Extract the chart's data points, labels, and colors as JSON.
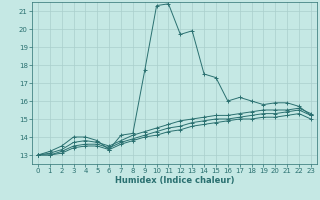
{
  "xlabel": "Humidex (Indice chaleur)",
  "ylabel": "",
  "bg_color": "#c5e8e4",
  "grid_color": "#aacfcc",
  "line_color": "#2a7070",
  "xlim": [
    -0.5,
    23.5
  ],
  "ylim": [
    12.5,
    21.5
  ],
  "x_ticks": [
    0,
    1,
    2,
    3,
    4,
    5,
    6,
    7,
    8,
    9,
    10,
    11,
    12,
    13,
    14,
    15,
    16,
    17,
    18,
    19,
    20,
    21,
    22,
    23
  ],
  "y_ticks": [
    13,
    14,
    15,
    16,
    17,
    18,
    19,
    20,
    21
  ],
  "series": [
    {
      "x": [
        0,
        1,
        2,
        3,
        4,
        5,
        6,
        7,
        8,
        9,
        10,
        11,
        12,
        13,
        14,
        15,
        16,
        17,
        18,
        19,
        20,
        21,
        22,
        23
      ],
      "y": [
        13.0,
        13.2,
        13.5,
        14.0,
        14.0,
        13.8,
        13.3,
        14.1,
        14.2,
        17.7,
        21.3,
        21.4,
        19.7,
        19.9,
        17.5,
        17.3,
        16.0,
        16.2,
        16.0,
        15.8,
        15.9,
        15.9,
        15.7,
        15.2
      ]
    },
    {
      "x": [
        0,
        1,
        2,
        3,
        4,
        5,
        6,
        7,
        8,
        9,
        10,
        11,
        12,
        13,
        14,
        15,
        16,
        17,
        18,
        19,
        20,
        21,
        22,
        23
      ],
      "y": [
        13.0,
        13.1,
        13.3,
        13.7,
        13.8,
        13.7,
        13.5,
        13.8,
        14.1,
        14.3,
        14.5,
        14.7,
        14.9,
        15.0,
        15.1,
        15.2,
        15.2,
        15.3,
        15.4,
        15.5,
        15.5,
        15.5,
        15.6,
        15.3
      ]
    },
    {
      "x": [
        0,
        1,
        2,
        3,
        4,
        5,
        6,
        7,
        8,
        9,
        10,
        11,
        12,
        13,
        14,
        15,
        16,
        17,
        18,
        19,
        20,
        21,
        22,
        23
      ],
      "y": [
        13.0,
        13.0,
        13.2,
        13.5,
        13.6,
        13.6,
        13.4,
        13.7,
        13.9,
        14.1,
        14.3,
        14.5,
        14.6,
        14.8,
        14.9,
        15.0,
        15.0,
        15.1,
        15.2,
        15.3,
        15.3,
        15.4,
        15.5,
        15.2
      ]
    },
    {
      "x": [
        0,
        1,
        2,
        3,
        4,
        5,
        6,
        7,
        8,
        9,
        10,
        11,
        12,
        13,
        14,
        15,
        16,
        17,
        18,
        19,
        20,
        21,
        22,
        23
      ],
      "y": [
        13.0,
        13.0,
        13.1,
        13.4,
        13.5,
        13.5,
        13.3,
        13.6,
        13.8,
        14.0,
        14.1,
        14.3,
        14.4,
        14.6,
        14.7,
        14.8,
        14.9,
        15.0,
        15.0,
        15.1,
        15.1,
        15.2,
        15.3,
        15.0
      ]
    }
  ]
}
